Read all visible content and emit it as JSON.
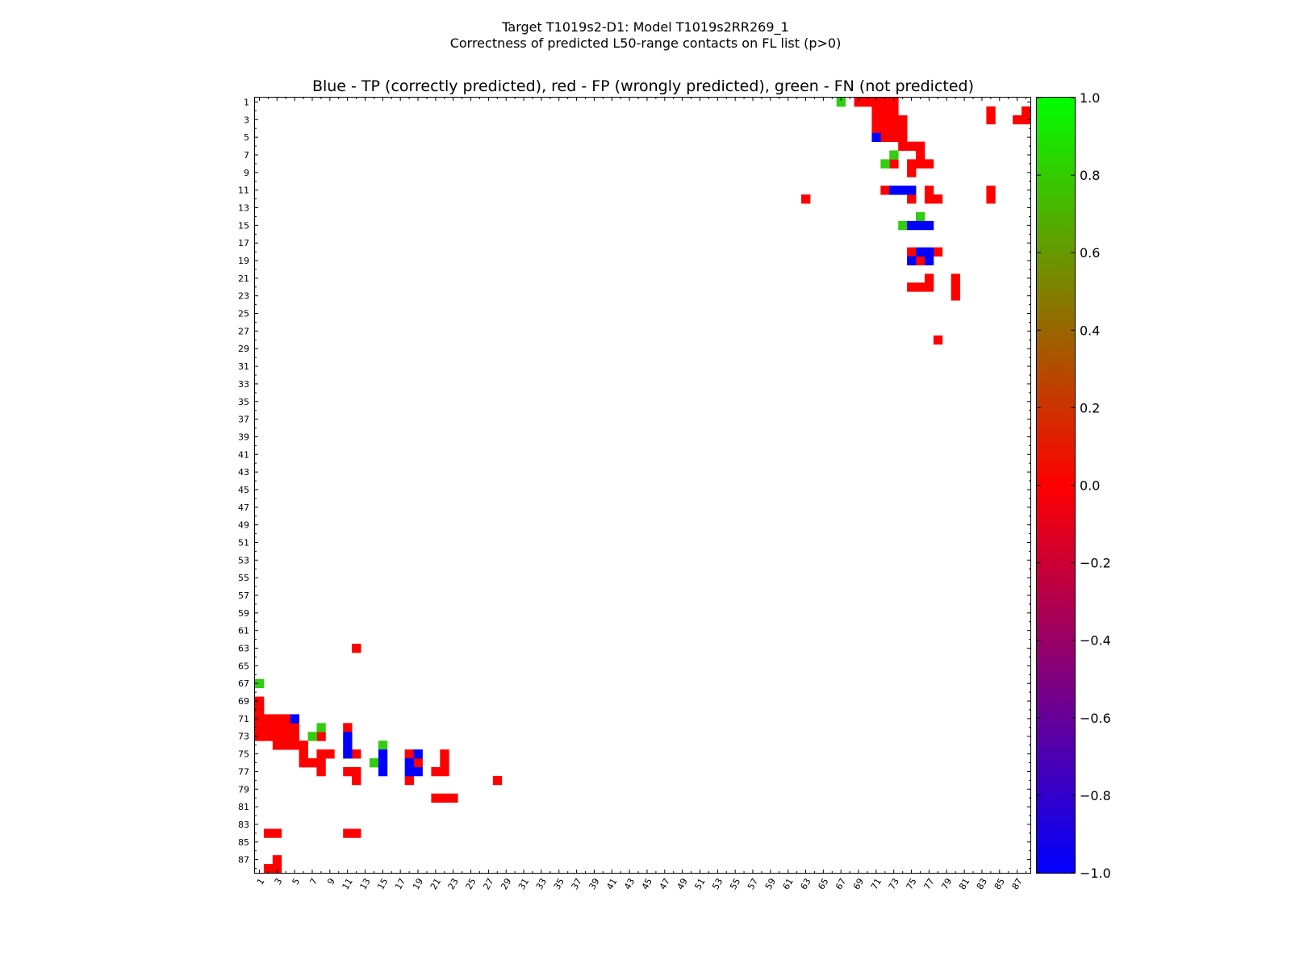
{
  "chart_data": {
    "type": "heatmap",
    "suptitle": [
      "Target T1019s2-D1: Model T1019s2RR269_1",
      "Correctness of predicted L50-range contacts on FL list (p>0)"
    ],
    "title": "Blue - TP (correctly predicted), red - FP (wrongly predicted), green - FN (not predicted)",
    "xlabel": "",
    "ylabel": "",
    "n_residues": 88,
    "x_ticks": [
      "1",
      "3",
      "5",
      "7",
      "9",
      "11",
      "13",
      "15",
      "17",
      "19",
      "21",
      "23",
      "25",
      "27",
      "29",
      "31",
      "33",
      "35",
      "37",
      "39",
      "41",
      "43",
      "45",
      "47",
      "49",
      "51",
      "53",
      "55",
      "57",
      "59",
      "61",
      "63",
      "65",
      "67",
      "69",
      "71",
      "73",
      "75",
      "77",
      "79",
      "81",
      "83",
      "85",
      "87"
    ],
    "y_ticks": [
      "1",
      "3",
      "5",
      "7",
      "9",
      "11",
      "13",
      "15",
      "17",
      "19",
      "21",
      "23",
      "25",
      "27",
      "29",
      "31",
      "33",
      "35",
      "37",
      "39",
      "41",
      "43",
      "45",
      "47",
      "49",
      "51",
      "53",
      "55",
      "57",
      "59",
      "61",
      "63",
      "65",
      "67",
      "69",
      "71",
      "73",
      "75",
      "77",
      "79",
      "81",
      "83",
      "85",
      "87"
    ],
    "colorbar": {
      "range": [
        -1.0,
        1.0
      ],
      "ticks": [
        "1.0",
        "0.8",
        "0.6",
        "0.4",
        "0.2",
        "0.0",
        "−0.2",
        "−0.4",
        "−0.6",
        "−0.8",
        "−1.0"
      ],
      "colormap": "brg"
    },
    "colors": {
      "tp": "#0000ff",
      "fp": "#ff0000",
      "fn": "#33cc11"
    },
    "legend": {
      "tp": "Blue - TP (correctly predicted)",
      "fp": "red - FP (wrongly predicted)",
      "fn": "green - FN (not predicted)"
    },
    "cells": {
      "tp": [
        [
          5,
          71
        ],
        [
          11,
          73
        ],
        [
          11,
          74
        ],
        [
          11,
          75
        ],
        [
          15,
          75
        ],
        [
          15,
          76
        ],
        [
          15,
          77
        ],
        [
          18,
          76
        ],
        [
          18,
          77
        ],
        [
          19,
          75
        ],
        [
          19,
          77
        ]
      ],
      "fn": [
        [
          1,
          67
        ],
        [
          7,
          73
        ],
        [
          8,
          72
        ],
        [
          14,
          76
        ],
        [
          15,
          74
        ]
      ],
      "fp": [
        [
          1,
          69
        ],
        [
          1,
          70
        ],
        [
          1,
          71
        ],
        [
          1,
          72
        ],
        [
          1,
          73
        ],
        [
          2,
          71
        ],
        [
          2,
          72
        ],
        [
          2,
          73
        ],
        [
          3,
          71
        ],
        [
          3,
          72
        ],
        [
          3,
          73
        ],
        [
          3,
          74
        ],
        [
          4,
          71
        ],
        [
          4,
          72
        ],
        [
          4,
          73
        ],
        [
          4,
          74
        ],
        [
          5,
          72
        ],
        [
          5,
          73
        ],
        [
          5,
          74
        ],
        [
          6,
          74
        ],
        [
          6,
          75
        ],
        [
          6,
          76
        ],
        [
          7,
          76
        ],
        [
          8,
          73
        ],
        [
          8,
          75
        ],
        [
          8,
          76
        ],
        [
          8,
          77
        ],
        [
          9,
          75
        ],
        [
          11,
          72
        ],
        [
          11,
          77
        ],
        [
          12,
          75
        ],
        [
          12,
          77
        ],
        [
          12,
          78
        ],
        [
          12,
          63
        ],
        [
          18,
          75
        ],
        [
          18,
          78
        ],
        [
          19,
          76
        ],
        [
          21,
          77
        ],
        [
          22,
          75
        ],
        [
          22,
          76
        ],
        [
          22,
          77
        ],
        [
          21,
          80
        ],
        [
          22,
          80
        ],
        [
          23,
          80
        ],
        [
          28,
          78
        ],
        [
          2,
          84
        ],
        [
          3,
          84
        ],
        [
          11,
          84
        ],
        [
          12,
          84
        ],
        [
          2,
          88
        ],
        [
          3,
          87
        ],
        [
          3,
          88
        ]
      ]
    }
  }
}
